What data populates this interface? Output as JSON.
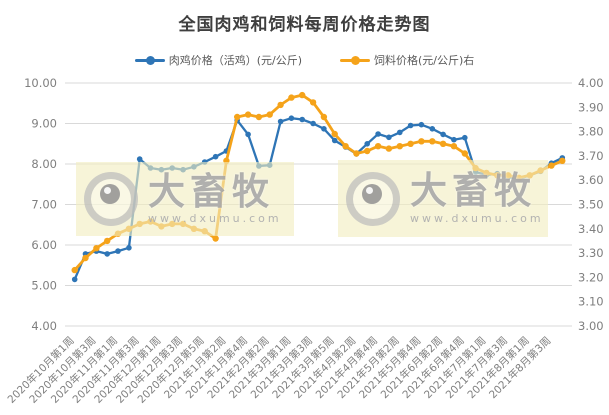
{
  "title": "全国肉鸡和饲料每周价格走势图",
  "legend": [
    {
      "label": "肉鸡价格（活鸡）(元/公斤)",
      "color": "#2e75b6"
    },
    {
      "label": "饲料价格(元/公斤)右",
      "color": "#f5a31a"
    }
  ],
  "watermark": {
    "brand": "大畜牧",
    "url": "www.dxumu.com"
  },
  "chart_data": {
    "type": "line",
    "title": "全国肉鸡和饲料每周价格走势图",
    "x_tick_labels": [
      "2020年10月第1周",
      "2020年10月第3周",
      "2020年11月第1周",
      "2020年11月第3周",
      "2020年12月第1周",
      "2020年12月第3周",
      "2020年12月第5周",
      "2021年1月第2周",
      "2021年1月第4周",
      "2021年2月第2周",
      "2021年3月第1周",
      "2021年3月第3周",
      "2021年3月第5周",
      "2021年4月第2周",
      "2021年4月第4周",
      "2021年5月第2周",
      "2021年5月第4周",
      "2021年6月第2周",
      "2021年6月第4周",
      "2021年7月第1周",
      "2021年7月第3周",
      "2021年8月第1周",
      "2021年8月第3周"
    ],
    "points_per_tick": 2,
    "series": [
      {
        "name": "肉鸡价格（活鸡）(元/公斤)",
        "axis": "left",
        "color": "#2e75b6",
        "values": [
          5.15,
          5.78,
          5.85,
          5.78,
          5.85,
          5.93,
          8.12,
          7.9,
          7.86,
          7.9,
          7.86,
          7.93,
          8.05,
          8.18,
          8.32,
          9.08,
          8.73,
          7.95,
          7.97,
          9.05,
          9.13,
          9.1,
          9.0,
          8.87,
          8.58,
          8.42,
          8.25,
          8.5,
          8.74,
          8.66,
          8.78,
          8.95,
          8.97,
          8.87,
          8.73,
          8.6,
          8.65,
          7.8,
          7.73,
          7.76,
          7.68,
          7.63,
          7.72,
          7.82,
          8.02,
          8.15
        ]
      },
      {
        "name": "饲料价格(元/公斤)右",
        "axis": "right",
        "color": "#f5a31a",
        "values": [
          3.23,
          3.28,
          3.32,
          3.35,
          3.38,
          3.4,
          3.42,
          3.43,
          3.41,
          3.42,
          3.42,
          3.4,
          3.39,
          3.36,
          3.68,
          3.86,
          3.87,
          3.86,
          3.87,
          3.91,
          3.94,
          3.95,
          3.92,
          3.86,
          3.79,
          3.74,
          3.71,
          3.72,
          3.74,
          3.73,
          3.74,
          3.75,
          3.76,
          3.76,
          3.75,
          3.74,
          3.71,
          3.65,
          3.63,
          3.62,
          3.62,
          3.61,
          3.62,
          3.64,
          3.66,
          3.68
        ]
      }
    ],
    "left_axis": {
      "min": 4,
      "max": 10,
      "step": 1,
      "tick_labels": [
        "10.00",
        "9.00",
        "8.00",
        "7.00",
        "6.00",
        "5.00",
        "4.00"
      ]
    },
    "right_axis": {
      "min": 3,
      "max": 4,
      "step": 0.1,
      "tick_labels": [
        "4.00",
        "3.90",
        "3.80",
        "3.70",
        "3.60",
        "3.50",
        "3.40",
        "3.30",
        "3.20",
        "3.10",
        "3.00"
      ]
    },
    "grid": "horizontal",
    "gridline_color": "#d9d9d9",
    "axis_text_color": "#7f7f7f",
    "legend_position": "top"
  }
}
